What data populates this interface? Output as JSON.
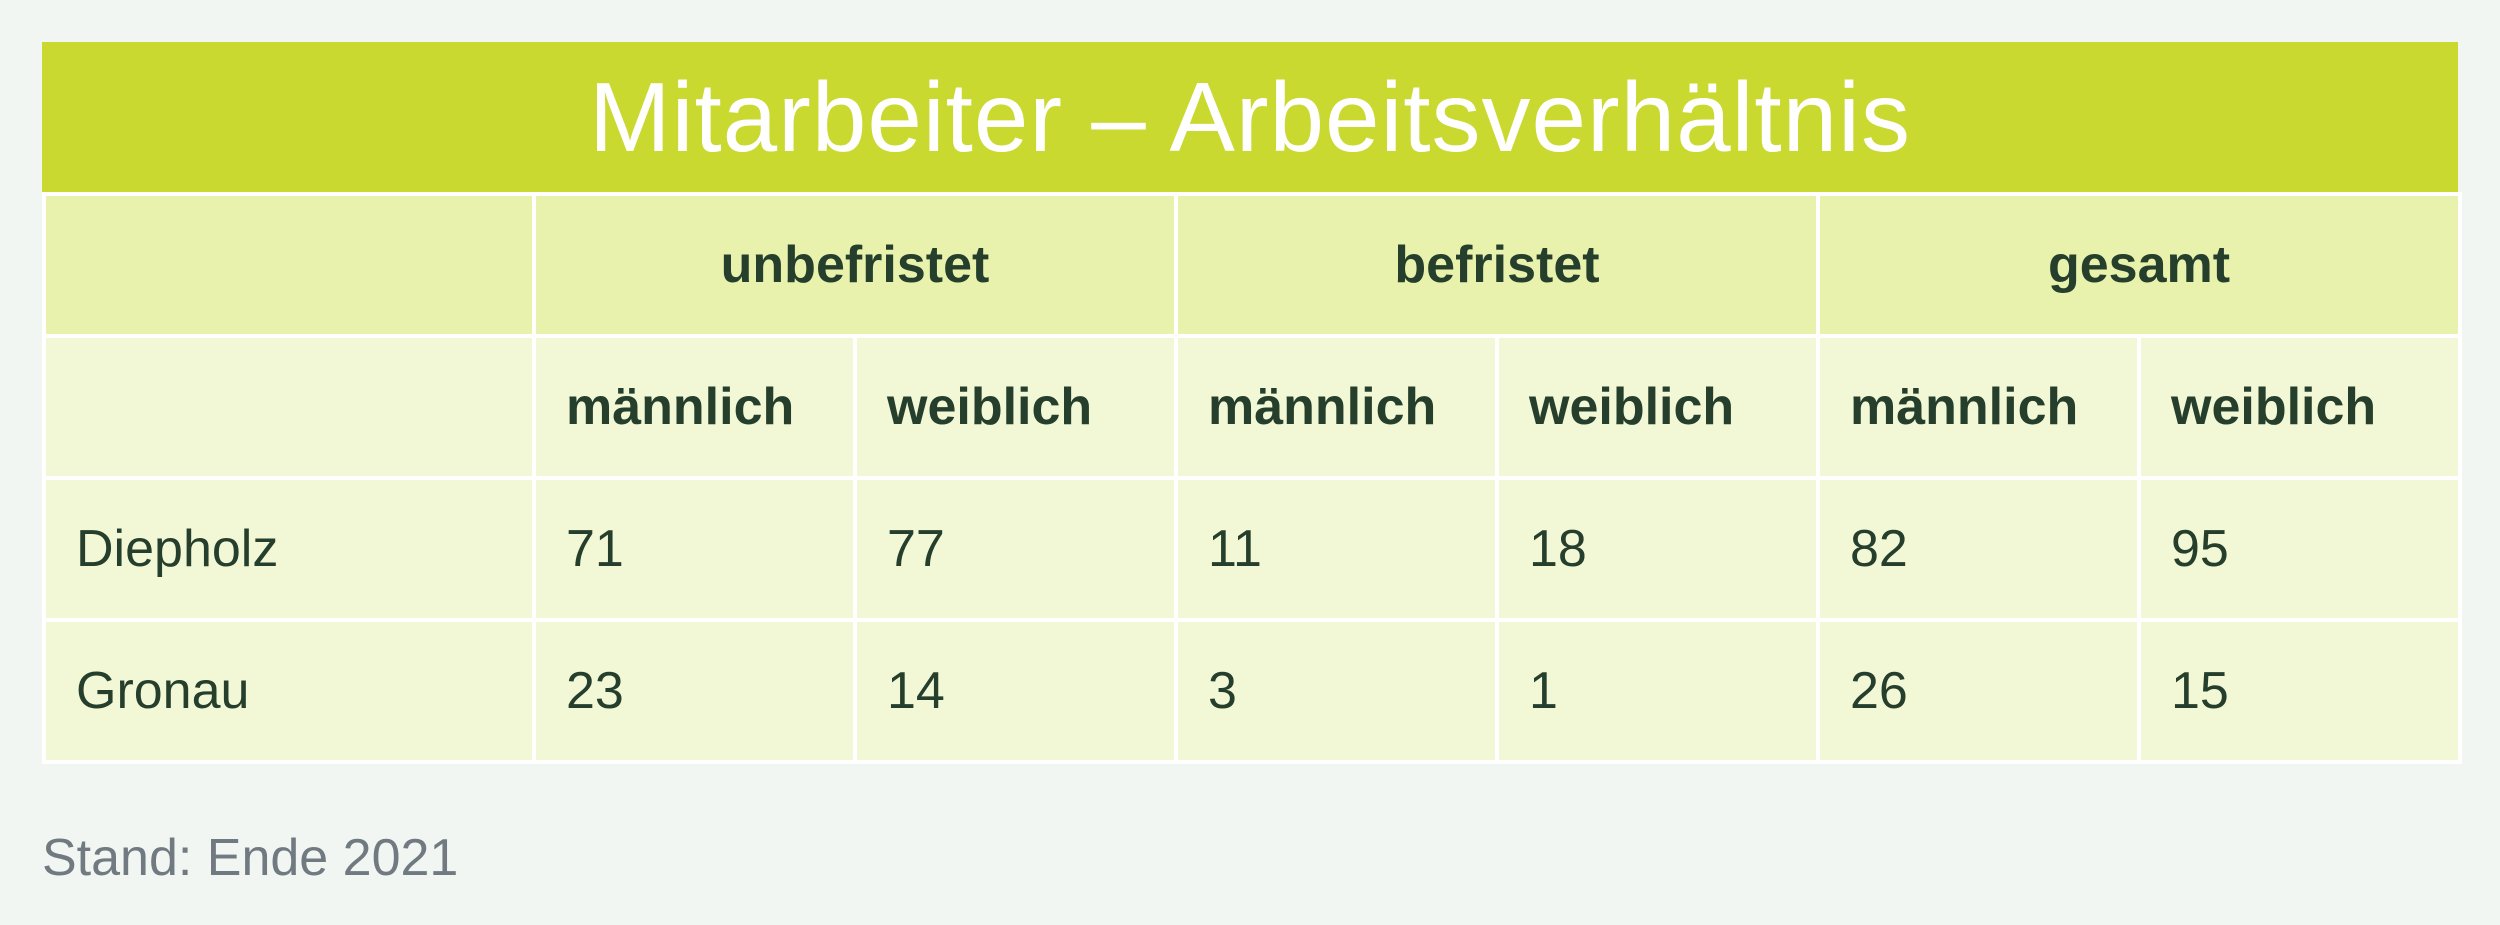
{
  "table": {
    "title": "Mitarbeiter – Arbeitsverhältnis",
    "group_headers": [
      "unbefristet",
      "befristet",
      "gesamt"
    ],
    "sub_headers": [
      "männlich",
      "weiblich",
      "männlich",
      "weiblich",
      "männlich",
      "weiblich"
    ],
    "rows": [
      {
        "label": "Diepholz",
        "values": [
          "71",
          "77",
          "11",
          "18",
          "82",
          "95"
        ]
      },
      {
        "label": "Gronau",
        "values": [
          "23",
          "14",
          "3",
          "1",
          "26",
          "15"
        ]
      }
    ]
  },
  "footnote": "Stand: Ende 2021",
  "colors": {
    "title_bg": "#cad92f",
    "header_bg": "#e9f2ac",
    "cell_bg": "#f2f7d6",
    "text": "#253f2c",
    "footnote": "#707a80"
  }
}
